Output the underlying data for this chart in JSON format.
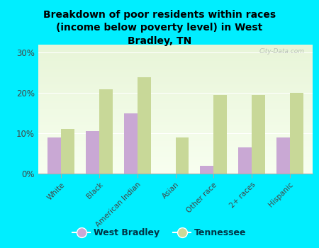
{
  "title": "Breakdown of poor residents within races\n(income below poverty level) in West\nBradley, TN",
  "categories": [
    "White",
    "Black",
    "American Indian",
    "Asian",
    "Other race",
    "2+ races",
    "Hispanic"
  ],
  "west_bradley": [
    9,
    10.5,
    15,
    0,
    2,
    6.5,
    9
  ],
  "tennessee": [
    11,
    21,
    24,
    9,
    19.5,
    19.5,
    20
  ],
  "bar_color_wb": "#c9a8d4",
  "bar_color_tn": "#c8d898",
  "background_color": "#00eeff",
  "plot_bg_top": "#e8f5d8",
  "plot_bg_bottom": "#f8fff0",
  "yticks": [
    0,
    10,
    20,
    30
  ],
  "ylim": [
    0,
    32
  ],
  "bar_width": 0.35,
  "watermark": "City-Data.com",
  "legend_wb": "West Bradley",
  "legend_tn": "Tennessee"
}
